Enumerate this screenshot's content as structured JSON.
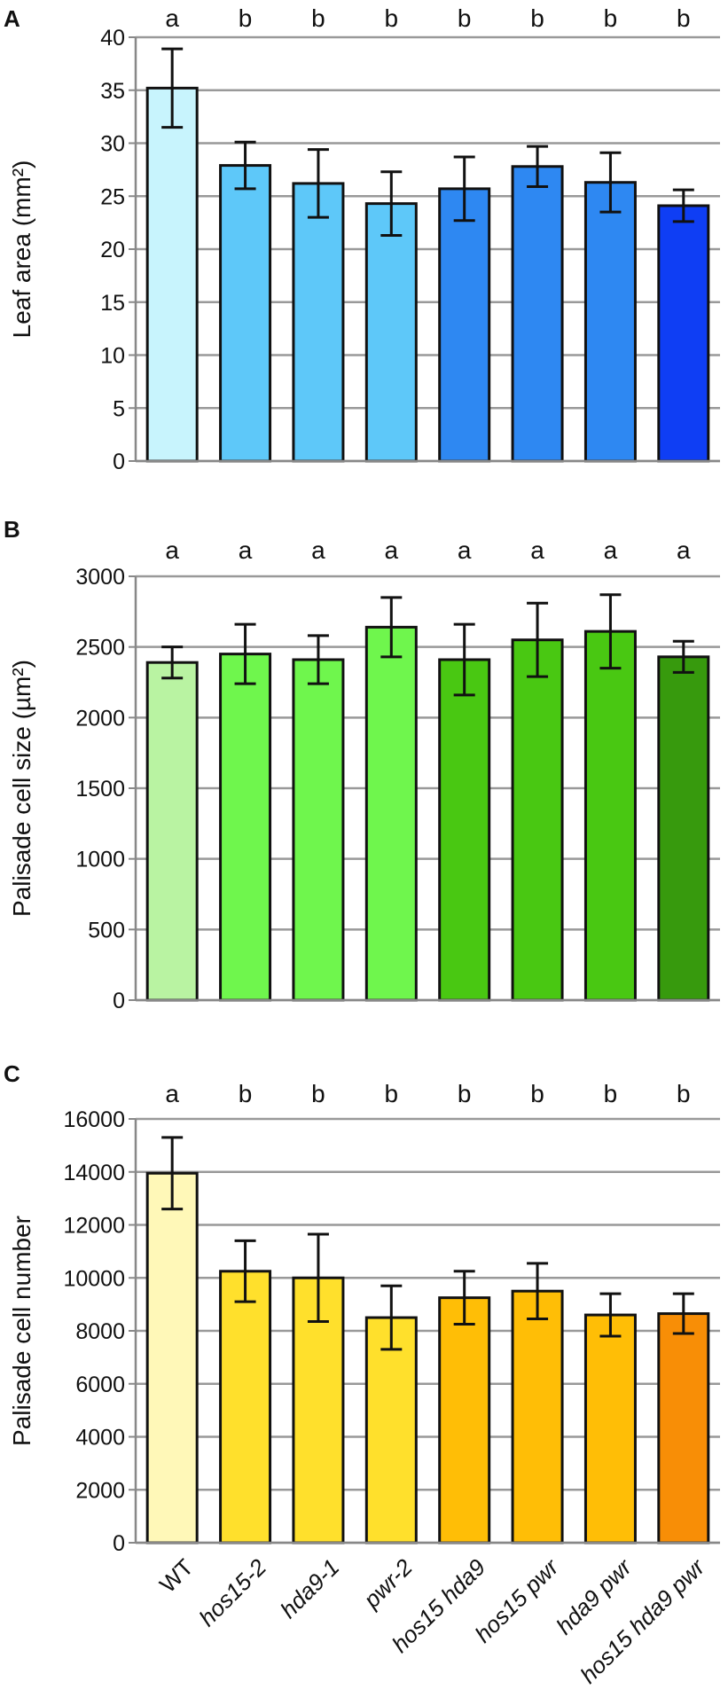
{
  "categories": [
    "WT",
    "hos15-2",
    "hda9-1",
    "pwr-2",
    "hos15 hda9",
    "hos15 pwr",
    "hda9 pwr",
    "hos15 hda9 pwr"
  ],
  "chart_data": [
    {
      "type": "bar",
      "panel": "A",
      "ylabel": "Leaf area (mm²)",
      "ylim": [
        0,
        40
      ],
      "yticks": [
        "0",
        "5",
        "10",
        "15",
        "20",
        "25",
        "30",
        "35",
        "40"
      ],
      "grid": true,
      "values": [
        35.2,
        27.9,
        26.2,
        24.3,
        25.7,
        27.8,
        26.3,
        24.1
      ],
      "errors": [
        3.7,
        2.2,
        3.2,
        3.0,
        3.0,
        1.9,
        2.8,
        1.5
      ],
      "significance": [
        "a",
        "b",
        "b",
        "b",
        "b",
        "b",
        "b",
        "b"
      ],
      "colors": [
        "#c8f4fd",
        "#5ec8f9",
        "#5ec8f9",
        "#5ec8f9",
        "#2e88f2",
        "#2e88f2",
        "#2e88f2",
        "#0f3ef4"
      ]
    },
    {
      "type": "bar",
      "panel": "B",
      "ylabel": "Palisade cell size (µm²)",
      "ylim": [
        0,
        3000
      ],
      "yticks": [
        "0",
        "500",
        "1000",
        "1500",
        "2000",
        "2500",
        "3000"
      ],
      "grid": true,
      "values": [
        2390,
        2450,
        2410,
        2640,
        2410,
        2550,
        2610,
        2430
      ],
      "errors": [
        110,
        210,
        170,
        210,
        250,
        260,
        260,
        110
      ],
      "significance": [
        "a",
        "a",
        "a",
        "a",
        "a",
        "a",
        "a",
        "a"
      ],
      "colors": [
        "#b9f3a2",
        "#6ff64d",
        "#6ff64d",
        "#6ff64d",
        "#49c812",
        "#49c812",
        "#49c812",
        "#379a0d"
      ]
    },
    {
      "type": "bar",
      "panel": "C",
      "ylabel": "Palisade cell number",
      "ylim": [
        0,
        16000
      ],
      "yticks": [
        "0",
        "2000",
        "4000",
        "6000",
        "8000",
        "10000",
        "12000",
        "14000",
        "16000"
      ],
      "grid": true,
      "values": [
        13950,
        10250,
        10000,
        8500,
        9250,
        9500,
        8600,
        8650
      ],
      "errors": [
        1350,
        1150,
        1650,
        1200,
        1000,
        1050,
        800,
        750
      ],
      "significance": [
        "a",
        "b",
        "b",
        "b",
        "b",
        "b",
        "b",
        "b"
      ],
      "colors": [
        "#fff8b8",
        "#ffe02c",
        "#ffe02c",
        "#ffe02c",
        "#ffbe06",
        "#ffbe06",
        "#ffbe06",
        "#f88e06"
      ]
    }
  ]
}
